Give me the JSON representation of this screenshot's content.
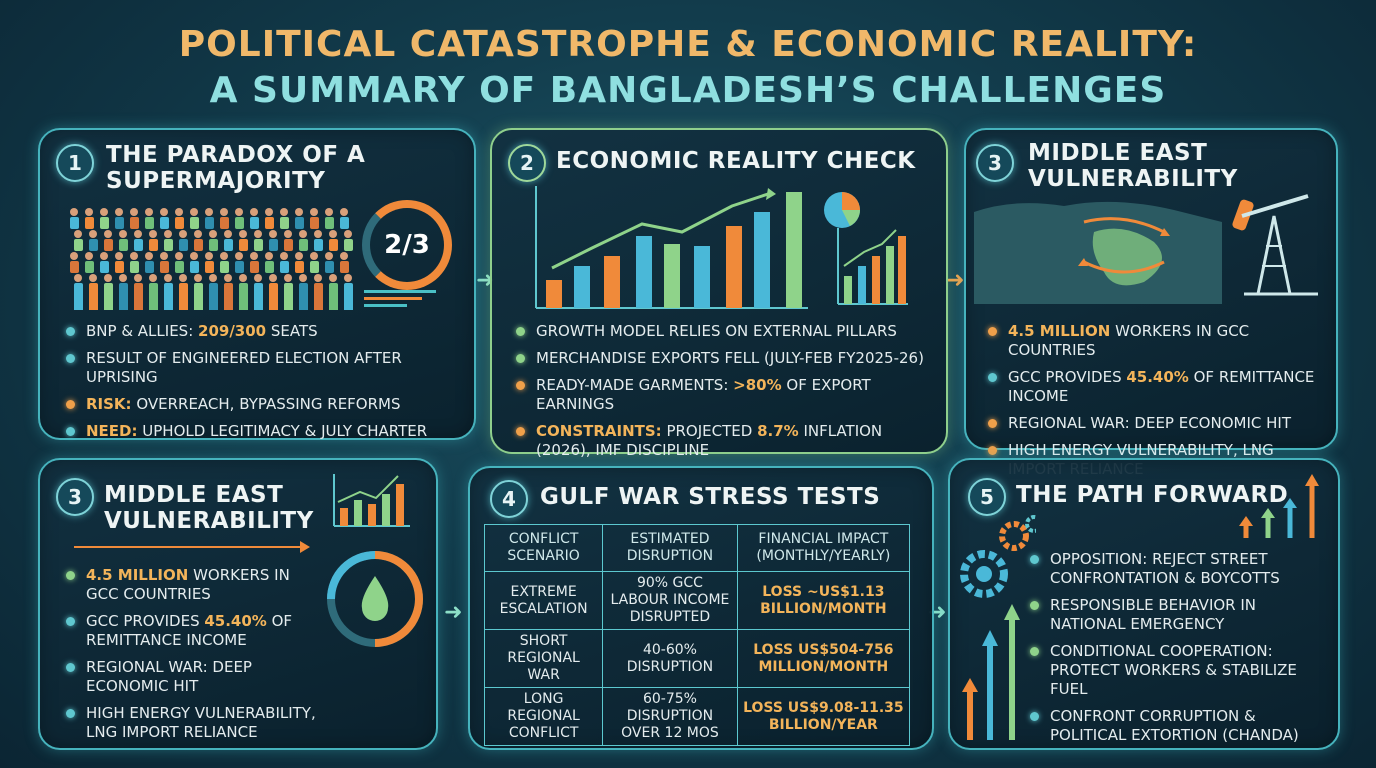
{
  "title": {
    "line1": "POLITICAL CATASTROPHE & ECONOMIC REALITY:",
    "line2": "A SUMMARY OF BANGLADESH’S CHALLENGES"
  },
  "colors": {
    "accent_orange": "#f3b45a",
    "accent_teal": "#5fc7cf",
    "accent_green": "#8fd38a"
  },
  "panel1": {
    "number": "1",
    "title": "THE PARADOX OF A SUPERMAJORITY",
    "ring_label": "2/3",
    "icons": [
      "crowd-icon",
      "two-thirds-ring-icon"
    ],
    "bullets": [
      {
        "highlight": "",
        "pre": "BNP & ALLIES: ",
        "value": "209/300",
        "post": " SEATS"
      },
      {
        "highlight": "",
        "pre": "RESULT OF ENGINEERED ELECTION AFTER UPRISING",
        "value": "",
        "post": ""
      },
      {
        "highlight": "RISK:",
        "pre": " OVERREACH, BYPASSING REFORMS",
        "value": "",
        "post": ""
      },
      {
        "highlight": "NEED:",
        "pre": " UPHOLD LEGITIMACY & JULY CHARTER",
        "value": "",
        "post": ""
      }
    ]
  },
  "panel2": {
    "number": "2",
    "title": "ECONOMIC REALITY CHECK",
    "icons": [
      "growth-bar-chart-icon",
      "pie-chart-icon",
      "mini-bar-chart-icon"
    ],
    "bullets": [
      {
        "text": "GROWTH MODEL RELIES ON EXTERNAL PILLARS"
      },
      {
        "text": "MERCHANDISE EXPORTS FELL (JULY-FEB FY2025-26)"
      },
      {
        "pre": "READY-MADE GARMENTS: ",
        "value": ">80%",
        "post": " OF EXPORT EARNINGS"
      },
      {
        "highlight": "CONSTRAINTS:",
        "pre": " PROJECTED ",
        "value": "8.7%",
        "post": " INFLATION (2026), IMF DISCIPLINE"
      }
    ]
  },
  "panel3": {
    "number": "3",
    "title": "MIDDLE EAST VULNERABILITY",
    "icons": [
      "middle-east-map-icon",
      "oil-pump-icon"
    ],
    "bullets": [
      {
        "value": "4.5 MILLION",
        "post": " WORKERS IN GCC COUNTRIES"
      },
      {
        "pre": "GCC PROVIDES ",
        "value": "45.40%",
        "post": " OF REMITTANCE INCOME"
      },
      {
        "text": "REGIONAL WAR: DEEP ECONOMIC HIT"
      },
      {
        "text": "HIGH ENERGY VULNERABILITY, LNG IMPORT RELIANCE"
      }
    ]
  },
  "panel4": {
    "number": "3",
    "title": "MIDDLE EAST VULNERABILITY",
    "icons": [
      "growth-chart-icon",
      "oil-drop-ring-icon"
    ],
    "bullets": [
      {
        "value": "4.5 MILLION",
        "post": " WORKERS IN GCC COUNTRIES"
      },
      {
        "pre": "GCC PROVIDES ",
        "value": "45.40%",
        "post": " OF REMITTANCE INCOME"
      },
      {
        "text": "REGIONAL WAR: DEEP ECONOMIC HIT"
      },
      {
        "text": "HIGH ENERGY VULNERABILITY, LNG IMPORT RELIANCE"
      }
    ]
  },
  "panel5": {
    "number": "4",
    "title": "GULF WAR STRESS TESTS",
    "table": {
      "headers": [
        "CONFLICT SCENARIO",
        "ESTIMATED DISRUPTION",
        "FINANCIAL IMPACT (MONTHLY/YEARLY)"
      ],
      "rows": [
        [
          "EXTREME ESCALATION",
          "90% GCC LABOUR INCOME DISRUPTED",
          "LOSS ~US$1.13 BILLION/MONTH"
        ],
        [
          "SHORT REGIONAL WAR",
          "40-60% DISRUPTION",
          "LOSS US$504-756 MILLION/MONTH"
        ],
        [
          "LONG REGIONAL CONFLICT",
          "60-75% DISRUPTION OVER 12 MOS",
          "LOSS US$9.08-11.35 BILLION/YEAR"
        ]
      ]
    }
  },
  "panel6": {
    "number": "5",
    "title": "THE PATH FORWARD",
    "icons": [
      "gears-icon",
      "rising-arrows-icon"
    ],
    "bullets": [
      {
        "text": "OPPOSITION: REJECT STREET CONFRONTATION & BOYCOTTS"
      },
      {
        "text": "RESPONSIBLE BEHAVIOR IN NATIONAL EMERGENCY"
      },
      {
        "text": "CONDITIONAL COOPERATION: PROTECT WORKERS & STABILIZE FUEL"
      },
      {
        "text": "CONFRONT CORRUPTION & POLITICAL EXTORTION (CHANDA)"
      }
    ]
  }
}
